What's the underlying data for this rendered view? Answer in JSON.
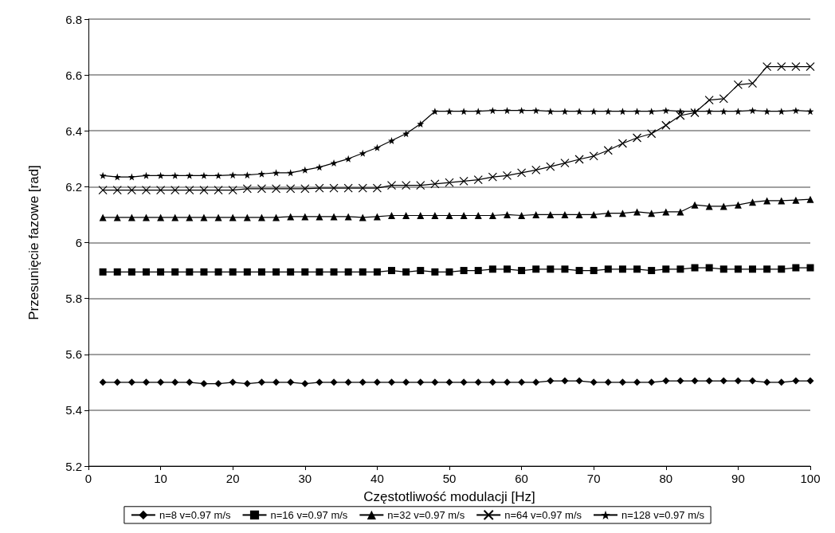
{
  "chart_data": {
    "type": "line",
    "xlabel": "Częstotliwość modulacji [Hz]",
    "ylabel": "Przesunięcie fazowe [rad]",
    "x": [
      2,
      4,
      6,
      8,
      10,
      12,
      14,
      16,
      18,
      20,
      22,
      24,
      26,
      28,
      30,
      32,
      34,
      36,
      38,
      40,
      42,
      44,
      46,
      48,
      50,
      52,
      54,
      56,
      58,
      60,
      62,
      64,
      66,
      68,
      70,
      72,
      74,
      76,
      78,
      80,
      82,
      84,
      86,
      88,
      90,
      92,
      94,
      96,
      98,
      100
    ],
    "xlim": [
      0,
      100
    ],
    "xticks": [
      0,
      10,
      20,
      30,
      40,
      50,
      60,
      70,
      80,
      90,
      100
    ],
    "ylim": [
      5.2,
      6.8
    ],
    "yticks": [
      5.2,
      5.4,
      5.6,
      5.8,
      6,
      6.2,
      6.4,
      6.6,
      6.8
    ],
    "grid": "y",
    "legend": "bottom",
    "line_style": "solid",
    "series": [
      {
        "name": "n=8 v=0.97 m/s",
        "color": "#000000",
        "marker": "diamond",
        "values": [
          5.5,
          5.5,
          5.5,
          5.5,
          5.5,
          5.5,
          5.5,
          5.495,
          5.495,
          5.5,
          5.495,
          5.5,
          5.5,
          5.5,
          5.495,
          5.5,
          5.5,
          5.5,
          5.5,
          5.5,
          5.5,
          5.5,
          5.5,
          5.5,
          5.5,
          5.5,
          5.5,
          5.5,
          5.5,
          5.5,
          5.5,
          5.505,
          5.505,
          5.505,
          5.5,
          5.5,
          5.5,
          5.5,
          5.5,
          5.505,
          5.505,
          5.505,
          5.505,
          5.505,
          5.505,
          5.505,
          5.5,
          5.5,
          5.505,
          5.505
        ]
      },
      {
        "name": "n=16 v=0.97 m/s",
        "color": "#000000",
        "marker": "square",
        "values": [
          5.895,
          5.895,
          5.895,
          5.895,
          5.895,
          5.895,
          5.895,
          5.895,
          5.895,
          5.895,
          5.895,
          5.895,
          5.895,
          5.895,
          5.895,
          5.895,
          5.895,
          5.895,
          5.895,
          5.895,
          5.9,
          5.895,
          5.9,
          5.895,
          5.895,
          5.9,
          5.9,
          5.905,
          5.905,
          5.9,
          5.905,
          5.905,
          5.905,
          5.9,
          5.9,
          5.905,
          5.905,
          5.905,
          5.9,
          5.905,
          5.905,
          5.91,
          5.91,
          5.905,
          5.905,
          5.905,
          5.905,
          5.905,
          5.91,
          5.91
        ]
      },
      {
        "name": "n=32 v=0.97 m/s",
        "color": "#000000",
        "marker": "triangle",
        "values": [
          6.09,
          6.09,
          6.09,
          6.09,
          6.09,
          6.09,
          6.09,
          6.09,
          6.09,
          6.09,
          6.09,
          6.09,
          6.09,
          6.093,
          6.093,
          6.093,
          6.093,
          6.093,
          6.09,
          6.093,
          6.097,
          6.097,
          6.097,
          6.097,
          6.097,
          6.097,
          6.097,
          6.097,
          6.1,
          6.097,
          6.1,
          6.1,
          6.1,
          6.1,
          6.1,
          6.105,
          6.105,
          6.11,
          6.105,
          6.11,
          6.11,
          6.135,
          6.13,
          6.13,
          6.135,
          6.145,
          6.15,
          6.15,
          6.152,
          6.155
        ]
      },
      {
        "name": "n=64 v=0.97 m/s",
        "color": "#000000",
        "marker": "cross",
        "values": [
          6.188,
          6.188,
          6.188,
          6.188,
          6.188,
          6.188,
          6.188,
          6.188,
          6.188,
          6.188,
          6.193,
          6.193,
          6.193,
          6.193,
          6.193,
          6.195,
          6.195,
          6.195,
          6.195,
          6.195,
          6.205,
          6.205,
          6.205,
          6.21,
          6.215,
          6.22,
          6.225,
          6.235,
          6.24,
          6.25,
          6.26,
          6.272,
          6.285,
          6.298,
          6.31,
          6.33,
          6.355,
          6.375,
          6.39,
          6.42,
          6.455,
          6.465,
          6.51,
          6.515,
          6.565,
          6.57,
          6.63,
          6.63,
          6.63,
          6.63
        ]
      },
      {
        "name": "n=128 v=0.97 m/s",
        "color": "#000000",
        "marker": "star",
        "values": [
          6.24,
          6.235,
          6.235,
          6.24,
          6.24,
          6.24,
          6.24,
          6.24,
          6.24,
          6.242,
          6.242,
          6.246,
          6.25,
          6.25,
          6.26,
          6.27,
          6.285,
          6.3,
          6.32,
          6.34,
          6.365,
          6.39,
          6.425,
          6.47,
          6.47,
          6.47,
          6.47,
          6.473,
          6.473,
          6.473,
          6.473,
          6.47,
          6.47,
          6.47,
          6.47,
          6.47,
          6.47,
          6.47,
          6.47,
          6.473,
          6.47,
          6.47,
          6.47,
          6.47,
          6.47,
          6.473,
          6.47,
          6.47,
          6.473,
          6.47
        ]
      }
    ]
  }
}
